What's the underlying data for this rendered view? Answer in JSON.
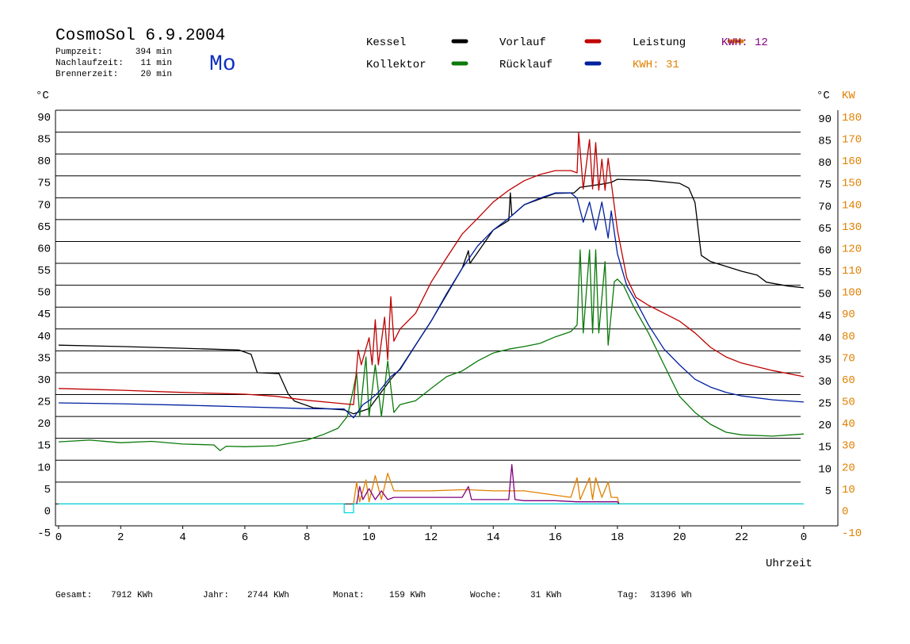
{
  "chart_data": {
    "type": "line",
    "title": "CosmoSol 6.9.2004",
    "day": "Mo",
    "stats": [
      {
        "label": "Pumpzeit:",
        "value": "394 min"
      },
      {
        "label": "Nachlaufzeit:",
        "value": "11 min"
      },
      {
        "label": "Brennerzeit:",
        "value": "20 min"
      }
    ],
    "legend_notes": [
      {
        "text": "KWH: 31",
        "color": "#e08000"
      },
      {
        "text": "KWH: 12",
        "color": "#800080"
      }
    ],
    "ylabel": "°C",
    "y_right_label": "°C",
    "y2label": "KW",
    "xlabel": "Uhrzeit",
    "xlim": [
      -0.1,
      25.1
    ],
    "xticks": [
      0,
      2,
      4,
      6,
      8,
      10,
      12,
      14,
      16,
      18,
      20,
      22,
      {
        "value": 24,
        "label": "0"
      }
    ],
    "ylim": [
      -5,
      90
    ],
    "yticks": [
      -5,
      0,
      5,
      10,
      15,
      20,
      25,
      30,
      35,
      40,
      45,
      50,
      55,
      60,
      65,
      70,
      75,
      80,
      85,
      90
    ],
    "yticks_right": [
      5,
      10,
      15,
      20,
      25,
      30,
      35,
      40,
      45,
      50,
      55,
      60,
      65,
      70,
      75,
      80,
      85,
      90
    ],
    "y2lim": [
      -10,
      180
    ],
    "y2ticks": [
      -10,
      0,
      10,
      20,
      30,
      40,
      50,
      60,
      70,
      80,
      90,
      100,
      110,
      120,
      130,
      140,
      150,
      160,
      170,
      180
    ],
    "grid": true,
    "series": [
      {
        "name": "Kessel",
        "color": "#000000",
        "x": [
          0,
          2,
          4,
          5.8,
          6.2,
          6.4,
          7.1,
          7.4,
          7.6,
          8.2,
          9.2,
          9.5,
          10,
          10.7,
          11,
          12,
          13,
          13.2,
          13.25,
          14,
          14.5,
          14.55,
          14.6,
          15,
          16,
          16.6,
          16.8,
          17.5,
          17.8,
          18,
          19,
          20,
          20.3,
          20.5,
          20.7,
          21,
          22,
          22.5,
          22.8,
          23.5,
          24
        ],
        "values": [
          36.3,
          36.0,
          35.6,
          35.2,
          34.2,
          30.0,
          29.8,
          25.1,
          23.5,
          22.0,
          21.5,
          20.6,
          21.8,
          28.5,
          30.9,
          41.8,
          53.9,
          57.9,
          55.0,
          62.6,
          64.8,
          71.1,
          65.9,
          68.4,
          71.0,
          71.1,
          72.4,
          73.1,
          73.5,
          74.2,
          74.0,
          73.3,
          72.2,
          68.9,
          56.8,
          55.4,
          53.2,
          52.3,
          50.7,
          49.8,
          49.4
        ]
      },
      {
        "name": "Kollektor",
        "color": "#0a7a0a",
        "x": [
          0,
          1,
          2,
          3,
          4,
          5,
          5.2,
          5.4,
          6,
          7,
          8,
          8.5,
          9,
          9.3,
          9.5,
          9.6,
          9.7,
          9.9,
          10,
          10.2,
          10.4,
          10.6,
          10.8,
          11,
          11.5,
          12,
          12.5,
          13,
          13.5,
          14,
          14.5,
          15,
          15.5,
          16,
          16.5,
          16.7,
          16.8,
          16.9,
          17.1,
          17.2,
          17.3,
          17.4,
          17.6,
          17.7,
          17.9,
          18,
          18.2,
          18.5,
          19,
          19.5,
          20,
          20.5,
          21,
          21.5,
          22,
          23,
          24
        ],
        "values": [
          14.2,
          14.6,
          14.0,
          14.3,
          13.7,
          13.5,
          12.2,
          13.2,
          13.1,
          13.3,
          14.6,
          15.8,
          17.3,
          20.0,
          26.4,
          30.0,
          20.0,
          33.6,
          20.0,
          31.8,
          20.0,
          32.7,
          20.9,
          22.7,
          23.6,
          26.4,
          29.1,
          30.4,
          32.7,
          34.5,
          35.4,
          36.0,
          36.7,
          38.2,
          39.4,
          40.9,
          58.1,
          39.1,
          58.1,
          39.1,
          58.1,
          39.1,
          55.4,
          36.3,
          50.8,
          51.4,
          49.9,
          45.4,
          39.1,
          31.8,
          24.6,
          20.9,
          18.2,
          16.4,
          15.8,
          15.5,
          16.0
        ]
      },
      {
        "name": "Vorlauf",
        "color": "#c00000",
        "x": [
          0,
          2,
          4,
          6,
          7,
          8,
          9.2,
          9.5,
          9.65,
          9.75,
          10.0,
          10.1,
          10.2,
          10.3,
          10.5,
          10.6,
          10.7,
          10.8,
          11,
          11.5,
          12,
          12.5,
          13,
          13.5,
          14,
          14.5,
          15,
          15.5,
          16,
          16.5,
          16.7,
          16.75,
          16.9,
          17.1,
          17.2,
          17.3,
          17.4,
          17.5,
          17.6,
          17.7,
          18,
          18.3,
          18.6,
          19,
          19.5,
          20,
          20.5,
          21,
          21.5,
          22,
          23,
          24
        ],
        "values": [
          26.4,
          26.0,
          25.5,
          25.1,
          24.6,
          23.7,
          22.9,
          22.7,
          35.2,
          31.8,
          38.0,
          31.8,
          42.1,
          31.8,
          42.7,
          33.0,
          47.4,
          37.2,
          40.0,
          43.6,
          50.7,
          56.3,
          61.7,
          65.3,
          69.0,
          71.7,
          73.9,
          75.3,
          76.2,
          76.2,
          75.7,
          84.9,
          72.0,
          83.3,
          72.0,
          82.6,
          71.7,
          78.8,
          71.7,
          79.0,
          62.6,
          51.7,
          47.2,
          45.4,
          43.6,
          41.8,
          39.1,
          35.8,
          33.6,
          32.2,
          30.5,
          29.1
        ]
      },
      {
        "name": "Rücklauf",
        "color": "#0020a0",
        "x": [
          0,
          2,
          4,
          6,
          8,
          9.2,
          9.5,
          9.8,
          10,
          10.3,
          10.5,
          10.7,
          11,
          11.5,
          12,
          12.5,
          13,
          13.5,
          14,
          14.5,
          15,
          15.5,
          16,
          16.5,
          16.7,
          16.9,
          17.1,
          17.3,
          17.5,
          17.7,
          17.8,
          18,
          18.3,
          18.6,
          19,
          19.5,
          20,
          20.5,
          21,
          21.5,
          22,
          23,
          24
        ],
        "values": [
          23.1,
          22.9,
          22.6,
          22.2,
          21.8,
          21.7,
          19.7,
          22.7,
          23.6,
          25.5,
          27.3,
          29.1,
          30.7,
          36.3,
          41.8,
          48.1,
          53.9,
          59.0,
          62.6,
          65.3,
          68.4,
          69.9,
          71.1,
          71.1,
          69.9,
          64.4,
          69.0,
          62.6,
          69.0,
          60.8,
          67.0,
          57.2,
          49.9,
          46.3,
          40.9,
          35.4,
          31.8,
          28.5,
          26.7,
          25.5,
          24.7,
          23.8,
          23.3
        ]
      },
      {
        "name": "Leistung",
        "color": "#e08000",
        "axis": "y2",
        "x": [
          9.5,
          9.6,
          9.7,
          9.9,
          10.0,
          10.2,
          10.4,
          10.6,
          10.8,
          11,
          12,
          13,
          13.2,
          14,
          15,
          15.5,
          16,
          16.5,
          16.7,
          16.8,
          17.1,
          17.2,
          17.3,
          17.5,
          17.7,
          17.8,
          18,
          18.05,
          24
        ],
        "values": [
          0,
          10,
          1,
          11,
          1,
          13,
          2,
          14,
          6,
          6,
          6,
          6.5,
          6.5,
          6,
          6,
          5,
          4,
          3,
          12,
          2,
          12,
          2,
          12,
          3,
          10,
          3,
          3,
          0,
          0
        ]
      },
      {
        "color": "#00d8e0",
        "x": [
          0,
          9.2,
          9.2,
          9.5,
          9.5,
          24
        ],
        "values": [
          0,
          0,
          -2,
          -2,
          0,
          0
        ]
      },
      {
        "color": "#800080",
        "axis": "y2",
        "x": [
          9.6,
          9.7,
          9.8,
          10,
          10.2,
          10.4,
          10.6,
          10.8,
          11,
          12,
          13,
          13.2,
          13.3,
          14,
          14.5,
          14.6,
          14.7,
          15,
          16,
          16.7,
          17,
          18,
          18.05
        ],
        "values": [
          0,
          8,
          2,
          7,
          2,
          6,
          2,
          3,
          3,
          3,
          3,
          8,
          2,
          2,
          2,
          18,
          2,
          1.5,
          1.5,
          1,
          1,
          1,
          0
        ]
      }
    ],
    "totals": [
      {
        "label": "Gesamt:",
        "value": "7912 KWh"
      },
      {
        "label": "Jahr:",
        "value": "2744 KWh"
      },
      {
        "label": "Monat:",
        "value": "159 KWh"
      },
      {
        "label": "Woche:",
        "value": "31 KWh"
      },
      {
        "label": "Tag:",
        "value": "31396 Wh"
      }
    ]
  }
}
